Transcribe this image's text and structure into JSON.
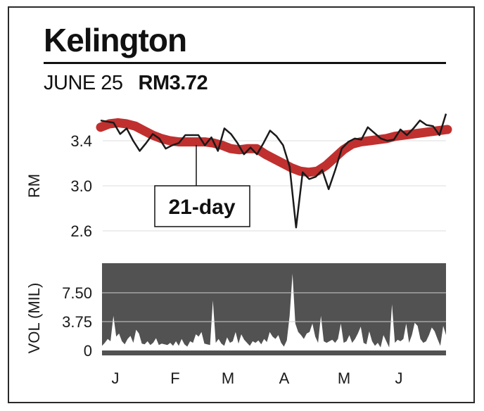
{
  "header": {
    "title": "Kelington",
    "date": "JUNE 25",
    "price": "RM3.72"
  },
  "annotation": {
    "label": "21-day"
  },
  "colors": {
    "price_line": "#1a1a1a",
    "moving_average": "#c0302f",
    "volume_fill": "#ffffff",
    "volume_bg": "#525252",
    "grid": "#dddddd"
  },
  "chart_data": [
    {
      "type": "line",
      "ylabel": "RM",
      "ylim": [
        2.6,
        3.85
      ],
      "yticks": [
        2.6,
        3.0,
        3.4
      ],
      "ytick_labels": [
        "2.6",
        "3.0",
        "3.4"
      ],
      "month_labels": [
        "J",
        "F",
        "M",
        "A",
        "M",
        "J"
      ],
      "series": [
        {
          "values": [
            3.58,
            3.57,
            3.56,
            3.46,
            3.51,
            3.4,
            3.31,
            3.38,
            3.46,
            3.42,
            3.33,
            3.36,
            3.38,
            3.45,
            3.45,
            3.45,
            3.36,
            3.43,
            3.31,
            3.51,
            3.46,
            3.38,
            3.28,
            3.34,
            3.28,
            3.38,
            3.49,
            3.44,
            3.36,
            3.17,
            2.63,
            3.12,
            3.06,
            3.08,
            3.14,
            2.97,
            3.14,
            3.33,
            3.39,
            3.42,
            3.41,
            3.52,
            3.47,
            3.42,
            3.4,
            3.41,
            3.5,
            3.45,
            3.51,
            3.58,
            3.54,
            3.53,
            3.45,
            3.64
          ]
        },
        {
          "values": [
            3.52,
            3.55,
            3.56,
            3.55,
            3.53,
            3.49,
            3.45,
            3.42,
            3.4,
            3.39,
            3.39,
            3.39,
            3.39,
            3.38,
            3.36,
            3.33,
            3.32,
            3.33,
            3.33,
            3.28,
            3.24,
            3.2,
            3.16,
            3.13,
            3.12,
            3.13,
            3.18,
            3.25,
            3.32,
            3.37,
            3.39,
            3.4,
            3.41,
            3.42,
            3.44,
            3.45,
            3.46,
            3.47,
            3.48,
            3.49,
            3.5
          ]
        }
      ]
    },
    {
      "type": "area",
      "ylabel": "VOL (MIL)",
      "ylim": [
        0,
        12.5
      ],
      "yticks": [
        0,
        3.75,
        7.5
      ],
      "ytick_labels": [
        "0",
        "3.75",
        "7.50"
      ],
      "values": [
        0.6,
        1.0,
        1.5,
        1.2,
        4.5,
        1.8,
        2.2,
        1.2,
        0.8,
        1.5,
        1.9,
        1.0,
        2.7,
        2.2,
        0.9,
        0.8,
        1.2,
        0.7,
        1.0,
        1.6,
        0.7,
        0.9,
        0.8,
        0.7,
        1.0,
        0.6,
        1.2,
        0.6,
        1.5,
        0.8,
        0.5,
        1.2,
        1.0,
        2.1,
        1.8,
        2.4,
        0.9,
        0.8,
        0.7,
        6.5,
        1.0,
        1.5,
        0.9,
        0.6,
        1.7,
        1.0,
        1.2,
        2.4,
        0.9,
        2.1,
        1.4,
        1.0,
        0.6,
        1.2,
        1.0,
        1.3,
        0.8,
        1.5,
        1.1,
        2.4,
        1.8,
        1.5,
        2.0,
        1.0,
        0.5,
        1.3,
        4.5,
        10.0,
        3.5,
        2.4,
        2.0,
        1.5,
        2.2,
        2.4,
        3.5,
        1.8,
        1.0,
        4.5,
        1.2,
        1.0,
        1.2,
        1.4,
        1.0,
        1.5,
        3.5,
        1.0,
        1.2,
        2.0,
        1.0,
        1.5,
        2.2,
        3.1,
        1.0,
        0.8,
        2.5,
        1.2,
        0.6,
        1.0,
        0.4,
        2.0,
        1.2,
        0.4,
        6.0,
        1.0,
        1.4,
        1.2,
        1.5,
        3.5,
        1.0,
        2.0,
        3.6,
        3.2,
        1.5,
        1.0,
        1.2,
        2.0,
        3.0,
        2.5,
        1.5,
        0.6,
        3.2,
        2.0
      ]
    }
  ]
}
